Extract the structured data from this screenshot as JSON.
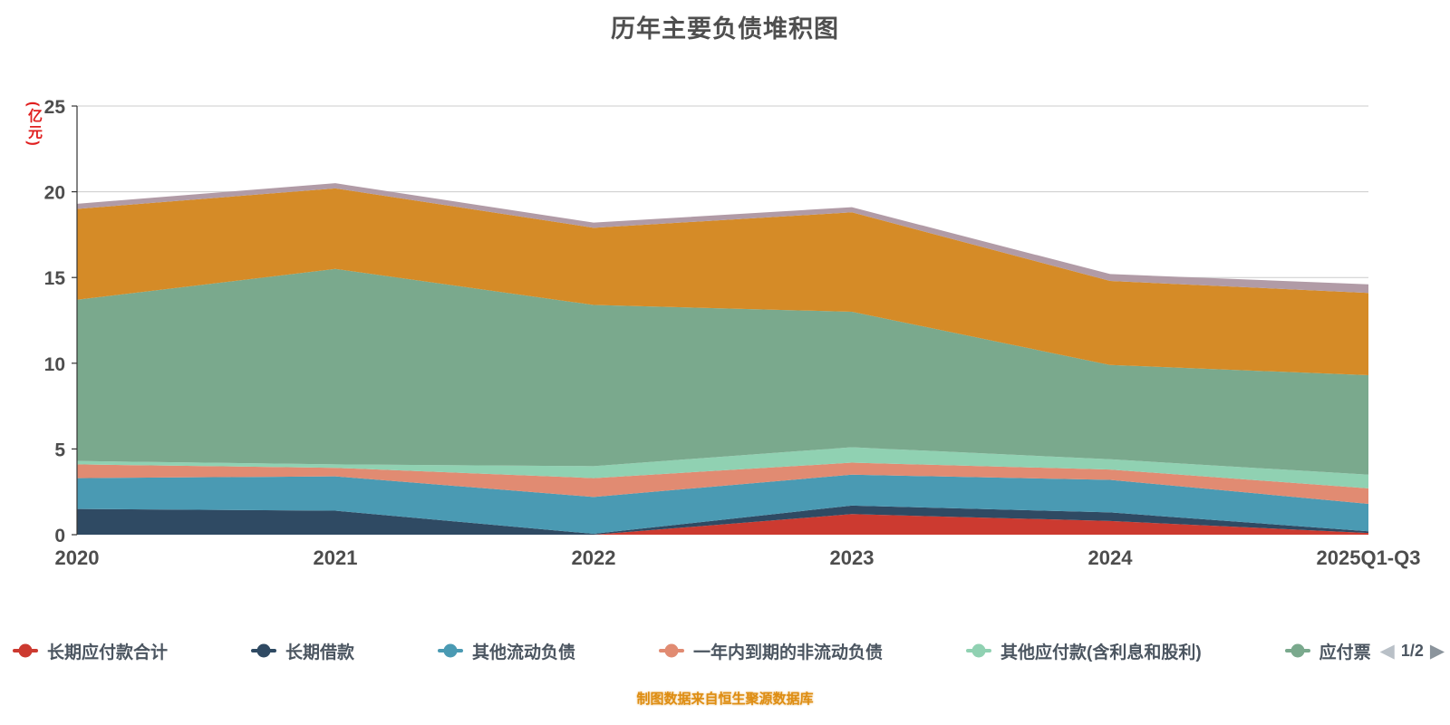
{
  "title": "历年主要负债堆积图",
  "y_axis_unit": "(亿元)",
  "caption": "制图数据来自恒生聚源数据库",
  "legend": {
    "page": "1/2",
    "items": [
      {
        "label": "长期应付款合计",
        "color": "#cc3a30"
      },
      {
        "label": "长期借款",
        "color": "#2f4a63"
      },
      {
        "label": "其他流动负债",
        "color": "#4a9ab3"
      },
      {
        "label": "一年内到期的非流动负债",
        "color": "#e18b72"
      },
      {
        "label": "其他应付款(含利息和股利)",
        "color": "#90d1b2"
      },
      {
        "label": "应付票",
        "color": "#7aa98d"
      }
    ]
  },
  "chart_data": {
    "type": "area",
    "stacked": true,
    "title": "历年主要负债堆积图",
    "ylabel": "(亿元)",
    "x": [
      "2020",
      "2021",
      "2022",
      "2023",
      "2024",
      "2025Q1-Q3"
    ],
    "ylim": [
      0,
      25
    ],
    "yticks": [
      0,
      5,
      10,
      15,
      20,
      25
    ],
    "grid": true,
    "legend_position": "bottom",
    "series": [
      {
        "name": "长期应付款合计",
        "color": "#cc3a30",
        "values": [
          0,
          0,
          0,
          1.2,
          0.8,
          0.1
        ]
      },
      {
        "name": "长期借款",
        "color": "#2f4a63",
        "values": [
          1.5,
          1.4,
          0.05,
          0.5,
          0.5,
          0.1
        ]
      },
      {
        "name": "其他流动负债",
        "color": "#4a9ab3",
        "values": [
          1.8,
          2.0,
          2.15,
          1.8,
          1.9,
          1.6
        ]
      },
      {
        "name": "一年内到期的非流动负债",
        "color": "#e18b72",
        "values": [
          0.8,
          0.5,
          1.1,
          0.7,
          0.6,
          0.9
        ]
      },
      {
        "name": "其他应付款(含利息和股利)",
        "color": "#90d1b2",
        "values": [
          0.2,
          0.2,
          0.7,
          0.9,
          0.6,
          0.8
        ]
      },
      {
        "name": "应付票",
        "color": "#7aa98d",
        "values": [
          9.4,
          11.4,
          9.4,
          7.9,
          5.5,
          5.8
        ]
      },
      {
        "name": "",
        "color": "#d58b27",
        "values": [
          5.3,
          4.7,
          4.5,
          5.8,
          4.9,
          4.8
        ]
      },
      {
        "name": "",
        "color": "#b19ba6",
        "values": [
          0.3,
          0.3,
          0.3,
          0.3,
          0.4,
          0.5
        ]
      }
    ]
  }
}
